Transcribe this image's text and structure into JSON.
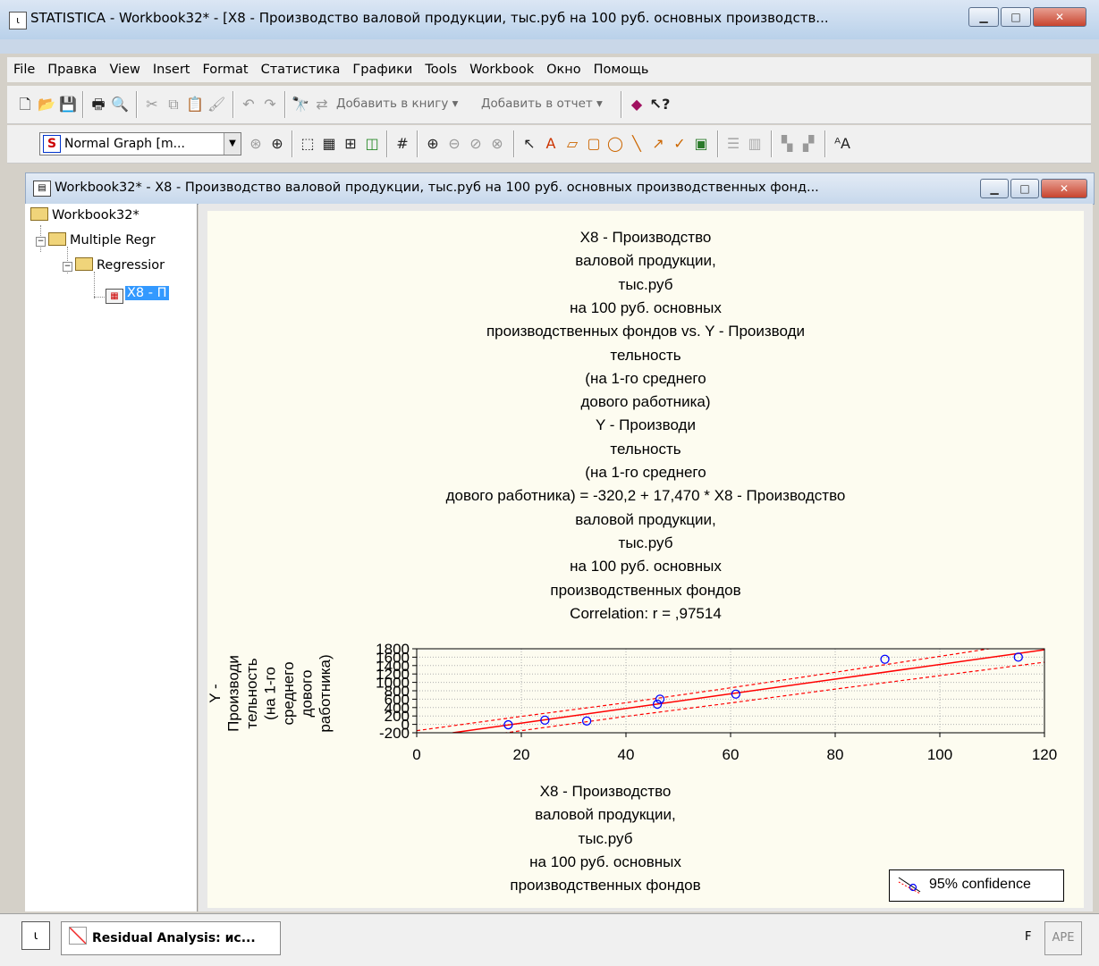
{
  "window": {
    "title": "STATISTICA - Workbook32* - [X8 - Производство  валовой продукции,  тыс.руб  на 100 руб. основных  производств...",
    "icon": "statistica-app-icon"
  },
  "menu": [
    "File",
    "Правка",
    "View",
    "Insert",
    "Format",
    "Статистика",
    "Графики",
    "Tools",
    "Workbook",
    "Окно",
    "Помощь"
  ],
  "toolbar": {
    "add_to_book": "Добавить в книгу ▾",
    "add_to_report": "Добавить в отчет ▾",
    "graph_type": "Normal Graph [m...",
    "graph_type_letter": "S"
  },
  "workbook": {
    "title": "Workbook32* - X8 - Производство  валовой продукции,  тыс.руб  на 100 руб. основных  производственных фонд..."
  },
  "tree": {
    "root": "Workbook32*",
    "level1": "Multiple Regr",
    "level2": "Regressior",
    "level3": "X8 - П"
  },
  "chart_data": {
    "type": "scatter",
    "title_lines": [
      "X8 - Производство",
      "валовой продукции,",
      "тыс.руб",
      "на 100 руб. основных",
      "производственных фондов vs. Y - Производи",
      "тельность",
      "(на 1-го среднего",
      "дового работника)",
      "Y - Производи",
      "тельность",
      "(на 1-го среднего",
      "дового работника) = -320,2 + 17,470 * X8 - Производство",
      "валовой продукции,",
      "тыс.руб",
      "на 100 руб. основных",
      "производственных фондов",
      "Correlation: r = ,97514"
    ],
    "xlabel_lines": [
      "X8 - Производство",
      "валовой продукции,",
      "тыс.руб",
      "на 100 руб. основных",
      "производственных фондов"
    ],
    "ylabel_lines": [
      "Y -",
      "Производи",
      "тельность",
      "(на 1-го",
      "среднего",
      "дового",
      "работника)"
    ],
    "xlim": [
      0,
      120
    ],
    "ylim": [
      -200,
      1800
    ],
    "x_ticks": [
      0,
      20,
      40,
      60,
      80,
      100,
      120
    ],
    "y_ticks": [
      -200,
      0,
      200,
      400,
      600,
      800,
      1000,
      1200,
      1400,
      1600,
      1800
    ],
    "points": [
      {
        "x": 17.5,
        "y": -10
      },
      {
        "x": 24.5,
        "y": 100
      },
      {
        "x": 32.5,
        "y": 80
      },
      {
        "x": 46,
        "y": 480
      },
      {
        "x": 46.5,
        "y": 600
      },
      {
        "x": 61,
        "y": 720
      },
      {
        "x": 89.5,
        "y": 1550
      },
      {
        "x": 115,
        "y": 1600
      }
    ],
    "regression": {
      "intercept": -320.2,
      "slope": 17.47
    },
    "confidence": {
      "x": [
        0,
        20,
        40,
        60,
        80,
        100,
        120
      ],
      "upper": [
        -150,
        190,
        515,
        870,
        1240,
        1620,
        2000
      ],
      "lower": [
        -490,
        -150,
        190,
        510,
        840,
        1160,
        1480
      ]
    },
    "legend": "95% confidence",
    "grid": true,
    "colors": {
      "points": "#0000ff",
      "fit": "#ff0000",
      "confidence": "#ff0000",
      "background": "#fdfcf0"
    }
  },
  "taskbar": {
    "item": "Residual Analysis: ис...",
    "status_left": "F",
    "status_right": "APE"
  }
}
